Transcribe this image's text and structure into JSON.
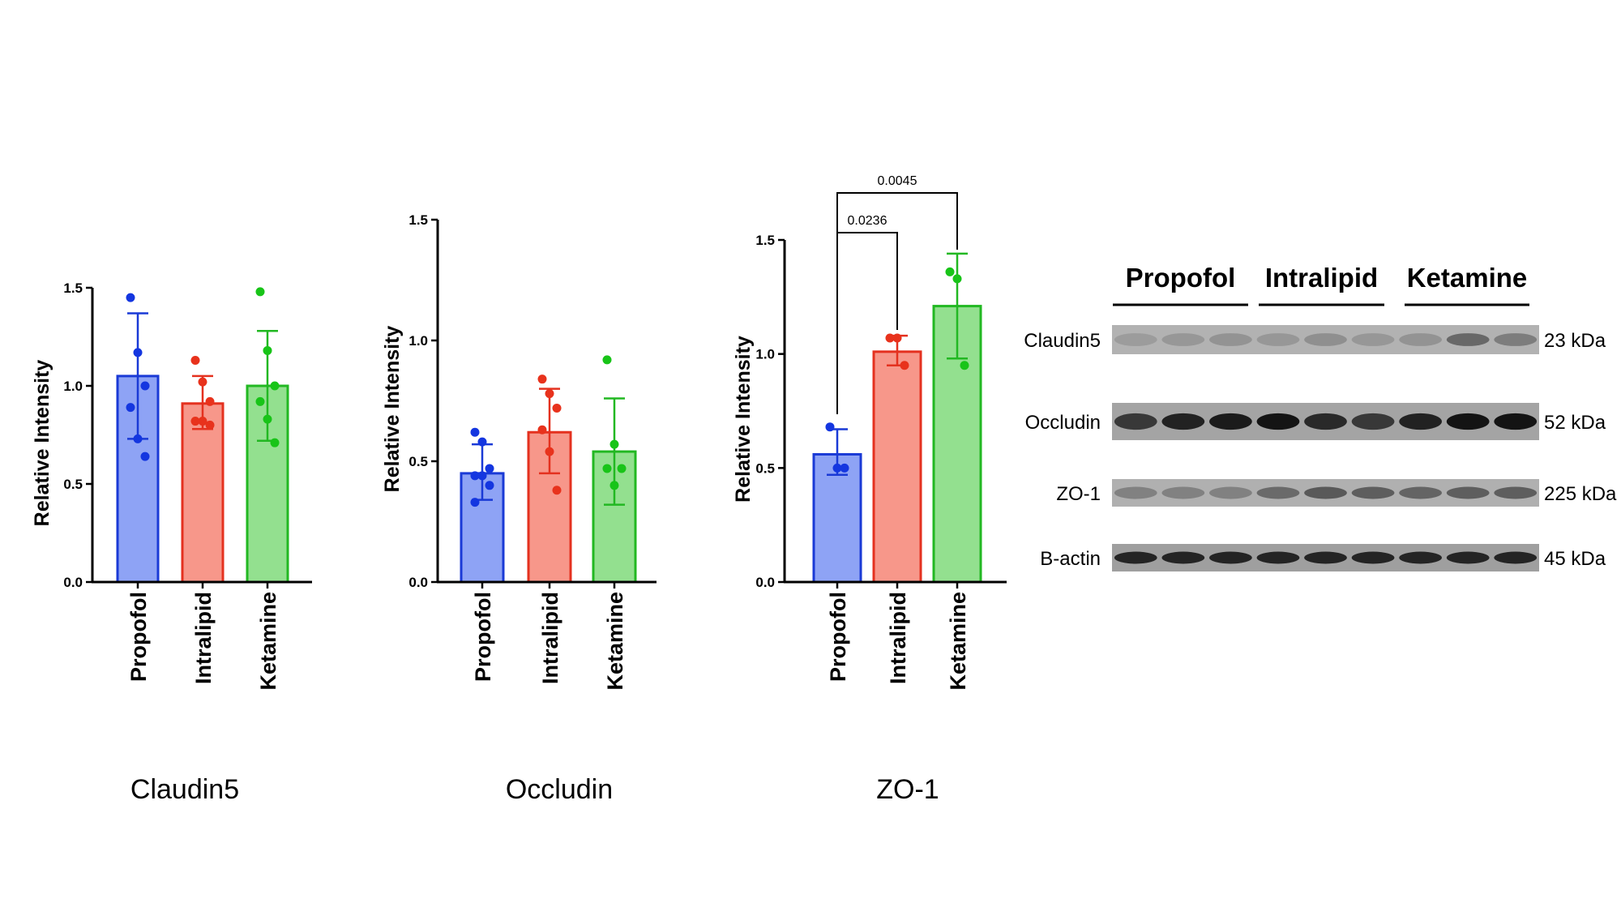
{
  "captions": [
    "Claudin5",
    "Occludin",
    "ZO-1"
  ],
  "colors": {
    "propofol_fill": "#8ea3f5",
    "propofol_stroke": "#1a3ad6",
    "propofol_dot": "#1436e0",
    "intralipid_fill": "#f7978a",
    "intralipid_stroke": "#e4311f",
    "intralipid_dot": "#e8321c",
    "ketamine_fill": "#93e08f",
    "ketamine_stroke": "#22b822",
    "ketamine_dot": "#18c418"
  },
  "chart_data": [
    {
      "type": "bar",
      "categories": [
        "Propofol",
        "Intralipid",
        "Ketamine"
      ],
      "ylabel": "Relative Intensity",
      "yticks": [
        "0.0",
        "0.5",
        "1.0",
        "1.5"
      ],
      "ylim": [
        0,
        1.5
      ],
      "values": [
        1.05,
        0.91,
        1.0
      ],
      "errors": [
        [
          0.73,
          1.37
        ],
        [
          0.78,
          1.05
        ],
        [
          0.72,
          1.28
        ]
      ],
      "points": [
        [
          1.45,
          1.17,
          1.0,
          0.89,
          0.73,
          0.64
        ],
        [
          1.13,
          1.02,
          0.92,
          0.82,
          0.82,
          0.8
        ],
        [
          1.48,
          1.18,
          1.0,
          0.92,
          0.83,
          0.71
        ]
      ]
    },
    {
      "type": "bar",
      "categories": [
        "Propofol",
        "Intralipid",
        "Ketamine"
      ],
      "ylabel": "Relative Intensity",
      "yticks": [
        "0.0",
        "0.5",
        "1.0",
        "1.5"
      ],
      "ylim": [
        0,
        1.5
      ],
      "values": [
        0.45,
        0.62,
        0.54
      ],
      "errors": [
        [
          0.34,
          0.57
        ],
        [
          0.45,
          0.8
        ],
        [
          0.32,
          0.76
        ]
      ],
      "points": [
        [
          0.62,
          0.58,
          0.47,
          0.44,
          0.44,
          0.4,
          0.33
        ],
        [
          0.84,
          0.78,
          0.72,
          0.63,
          0.54,
          0.38
        ],
        [
          0.92,
          0.57,
          0.47,
          0.47,
          0.4
        ]
      ]
    },
    {
      "type": "bar",
      "categories": [
        "Propofol",
        "Intralipid",
        "Ketamine"
      ],
      "ylabel": "Relative Intensity",
      "yticks": [
        "0.0",
        "0.5",
        "1.0",
        "1.5"
      ],
      "ylim": [
        0,
        1.5
      ],
      "values": [
        0.56,
        1.01,
        1.21
      ],
      "errors": [
        [
          0.47,
          0.67
        ],
        [
          0.95,
          1.08
        ],
        [
          0.98,
          1.44
        ]
      ],
      "points": [
        [
          0.68,
          0.5,
          0.5
        ],
        [
          1.07,
          1.07,
          0.95
        ],
        [
          1.36,
          1.33,
          0.95
        ]
      ],
      "annotations": [
        {
          "from": "Propofol",
          "to": "Intralipid",
          "label": "0.0236"
        },
        {
          "from": "Propofol",
          "to": "Ketamine",
          "label": "0.0045"
        }
      ]
    }
  ],
  "blot": {
    "groups": [
      "Propofol",
      "Intralipid",
      "Ketamine"
    ],
    "rows": [
      {
        "label": "Claudin5",
        "size": "23 kDa",
        "background": "#b2b2b2",
        "band": "#5a5a5a",
        "intensities": [
          0.25,
          0.3,
          0.35,
          0.3,
          0.4,
          0.3,
          0.35,
          0.85,
          0.6
        ]
      },
      {
        "label": "Occludin",
        "size": "52 kDa",
        "background": "#a4a4a4",
        "band": "#141414",
        "intensities": [
          0.75,
          0.9,
          0.95,
          1.0,
          0.85,
          0.75,
          0.9,
          1.0,
          1.0
        ]
      },
      {
        "label": "ZO-1",
        "size": "225 kDa",
        "background": "#b0b0b0",
        "band": "#3c3c3c",
        "intensities": [
          0.4,
          0.4,
          0.4,
          0.6,
          0.75,
          0.7,
          0.65,
          0.7,
          0.7
        ]
      },
      {
        "label": "B-actin",
        "size": "45 kDa",
        "background": "#9f9f9f",
        "band": "#1e1e1e",
        "intensities": [
          0.95,
          0.95,
          0.95,
          0.95,
          0.95,
          0.95,
          0.95,
          0.95,
          0.95
        ]
      }
    ]
  }
}
